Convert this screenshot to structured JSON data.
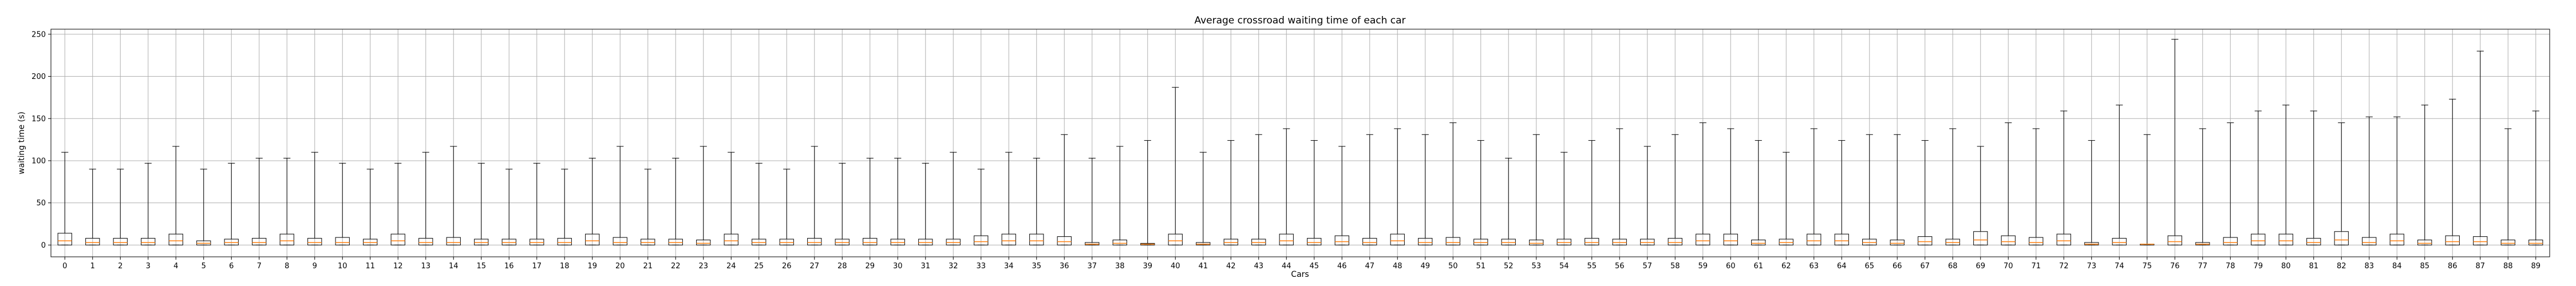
{
  "chart_data": {
    "type": "box",
    "title": "Average crossroad waiting time of each car",
    "xlabel": "Cars",
    "ylabel": "waiting time (s)",
    "ylim": [
      -14,
      256
    ],
    "yticks": [
      0,
      50,
      100,
      150,
      200,
      250
    ],
    "grid": true,
    "colors": {
      "box": "#000000",
      "median": "#ff7f0e",
      "grid": "#b0b0b0"
    },
    "categories": [
      "0",
      "1",
      "2",
      "3",
      "4",
      "5",
      "6",
      "7",
      "8",
      "9",
      "10",
      "11",
      "12",
      "13",
      "14",
      "15",
      "16",
      "17",
      "18",
      "19",
      "20",
      "21",
      "22",
      "23",
      "24",
      "25",
      "26",
      "27",
      "28",
      "29",
      "30",
      "31",
      "32",
      "33",
      "34",
      "35",
      "36",
      "37",
      "38",
      "39",
      "40",
      "41",
      "42",
      "43",
      "44",
      "45",
      "46",
      "47",
      "48",
      "49",
      "50",
      "51",
      "52",
      "53",
      "54",
      "55",
      "56",
      "57",
      "58",
      "59",
      "60",
      "61",
      "62",
      "63",
      "64",
      "65",
      "66",
      "67",
      "68",
      "69",
      "70",
      "71",
      "72",
      "73",
      "74",
      "75",
      "76",
      "77",
      "78",
      "79",
      "80",
      "81",
      "82",
      "83",
      "84",
      "85",
      "86",
      "87",
      "88",
      "89"
    ],
    "boxes": [
      {
        "min": 0,
        "q1": 0,
        "median": 5,
        "q3": 14,
        "max": 110
      },
      {
        "min": 0,
        "q1": 0,
        "median": 3,
        "q3": 8,
        "max": 90
      },
      {
        "min": 0,
        "q1": 0,
        "median": 3,
        "q3": 8,
        "max": 90
      },
      {
        "min": 0,
        "q1": 0,
        "median": 3,
        "q3": 8,
        "max": 97
      },
      {
        "min": 0,
        "q1": 0,
        "median": 5,
        "q3": 13,
        "max": 117
      },
      {
        "min": 0,
        "q1": 0,
        "median": 2,
        "q3": 5,
        "max": 90
      },
      {
        "min": 0,
        "q1": 0,
        "median": 3,
        "q3": 7,
        "max": 97
      },
      {
        "min": 0,
        "q1": 0,
        "median": 3,
        "q3": 8,
        "max": 103
      },
      {
        "min": 0,
        "q1": 0,
        "median": 5,
        "q3": 13,
        "max": 103
      },
      {
        "min": 0,
        "q1": 0,
        "median": 3,
        "q3": 8,
        "max": 110
      },
      {
        "min": 0,
        "q1": 0,
        "median": 3,
        "q3": 9,
        "max": 97
      },
      {
        "min": 0,
        "q1": 0,
        "median": 3,
        "q3": 7,
        "max": 90
      },
      {
        "min": 0,
        "q1": 0,
        "median": 5,
        "q3": 13,
        "max": 97
      },
      {
        "min": 0,
        "q1": 0,
        "median": 3,
        "q3": 8,
        "max": 110
      },
      {
        "min": 0,
        "q1": 0,
        "median": 3,
        "q3": 9,
        "max": 117
      },
      {
        "min": 0,
        "q1": 0,
        "median": 3,
        "q3": 7,
        "max": 97
      },
      {
        "min": 0,
        "q1": 0,
        "median": 3,
        "q3": 7,
        "max": 90
      },
      {
        "min": 0,
        "q1": 0,
        "median": 3,
        "q3": 7,
        "max": 97
      },
      {
        "min": 0,
        "q1": 0,
        "median": 3,
        "q3": 8,
        "max": 90
      },
      {
        "min": 0,
        "q1": 0,
        "median": 5,
        "q3": 13,
        "max": 103
      },
      {
        "min": 0,
        "q1": 0,
        "median": 3,
        "q3": 9,
        "max": 117
      },
      {
        "min": 0,
        "q1": 0,
        "median": 3,
        "q3": 7,
        "max": 90
      },
      {
        "min": 0,
        "q1": 0,
        "median": 3,
        "q3": 7,
        "max": 103
      },
      {
        "min": 0,
        "q1": 0,
        "median": 2,
        "q3": 6,
        "max": 117
      },
      {
        "min": 0,
        "q1": 0,
        "median": 5,
        "q3": 13,
        "max": 110
      },
      {
        "min": 0,
        "q1": 0,
        "median": 3,
        "q3": 7,
        "max": 97
      },
      {
        "min": 0,
        "q1": 0,
        "median": 3,
        "q3": 7,
        "max": 90
      },
      {
        "min": 0,
        "q1": 0,
        "median": 3,
        "q3": 8,
        "max": 117
      },
      {
        "min": 0,
        "q1": 0,
        "median": 3,
        "q3": 7,
        "max": 97
      },
      {
        "min": 0,
        "q1": 0,
        "median": 3,
        "q3": 8,
        "max": 103
      },
      {
        "min": 0,
        "q1": 0,
        "median": 3,
        "q3": 7,
        "max": 103
      },
      {
        "min": 0,
        "q1": 0,
        "median": 3,
        "q3": 7,
        "max": 97
      },
      {
        "min": 0,
        "q1": 0,
        "median": 3,
        "q3": 7,
        "max": 110
      },
      {
        "min": 0,
        "q1": 0,
        "median": 4,
        "q3": 11,
        "max": 90
      },
      {
        "min": 0,
        "q1": 0,
        "median": 5,
        "q3": 13,
        "max": 110
      },
      {
        "min": 0,
        "q1": 0,
        "median": 5,
        "q3": 13,
        "max": 103
      },
      {
        "min": 0,
        "q1": 0,
        "median": 4,
        "q3": 10,
        "max": 131
      },
      {
        "min": 0,
        "q1": 0,
        "median": 1,
        "q3": 3,
        "max": 103
      },
      {
        "min": 0,
        "q1": 0,
        "median": 2,
        "q3": 6,
        "max": 117
      },
      {
        "min": 0,
        "q1": 0,
        "median": 1,
        "q3": 2,
        "max": 124
      },
      {
        "min": 0,
        "q1": 0,
        "median": 5,
        "q3": 13,
        "max": 187
      },
      {
        "min": 0,
        "q1": 0,
        "median": 1,
        "q3": 3,
        "max": 110
      },
      {
        "min": 0,
        "q1": 0,
        "median": 3,
        "q3": 7,
        "max": 124
      },
      {
        "min": 0,
        "q1": 0,
        "median": 3,
        "q3": 7,
        "max": 131
      },
      {
        "min": 0,
        "q1": 0,
        "median": 5,
        "q3": 13,
        "max": 138
      },
      {
        "min": 0,
        "q1": 0,
        "median": 3,
        "q3": 8,
        "max": 124
      },
      {
        "min": 0,
        "q1": 0,
        "median": 4,
        "q3": 11,
        "max": 117
      },
      {
        "min": 0,
        "q1": 0,
        "median": 3,
        "q3": 8,
        "max": 131
      },
      {
        "min": 0,
        "q1": 0,
        "median": 5,
        "q3": 13,
        "max": 138
      },
      {
        "min": 0,
        "q1": 0,
        "median": 3,
        "q3": 8,
        "max": 131
      },
      {
        "min": 0,
        "q1": 0,
        "median": 3,
        "q3": 9,
        "max": 145
      },
      {
        "min": 0,
        "q1": 0,
        "median": 3,
        "q3": 7,
        "max": 124
      },
      {
        "min": 0,
        "q1": 0,
        "median": 3,
        "q3": 7,
        "max": 103
      },
      {
        "min": 0,
        "q1": 0,
        "median": 2,
        "q3": 6,
        "max": 131
      },
      {
        "min": 0,
        "q1": 0,
        "median": 3,
        "q3": 7,
        "max": 110
      },
      {
        "min": 0,
        "q1": 0,
        "median": 3,
        "q3": 8,
        "max": 124
      },
      {
        "min": 0,
        "q1": 0,
        "median": 3,
        "q3": 7,
        "max": 138
      },
      {
        "min": 0,
        "q1": 0,
        "median": 3,
        "q3": 7,
        "max": 117
      },
      {
        "min": 0,
        "q1": 0,
        "median": 3,
        "q3": 8,
        "max": 131
      },
      {
        "min": 0,
        "q1": 0,
        "median": 5,
        "q3": 13,
        "max": 145
      },
      {
        "min": 0,
        "q1": 0,
        "median": 5,
        "q3": 13,
        "max": 138
      },
      {
        "min": 0,
        "q1": 0,
        "median": 2,
        "q3": 6,
        "max": 124
      },
      {
        "min": 0,
        "q1": 0,
        "median": 3,
        "q3": 7,
        "max": 110
      },
      {
        "min": 0,
        "q1": 0,
        "median": 5,
        "q3": 13,
        "max": 138
      },
      {
        "min": 0,
        "q1": 0,
        "median": 5,
        "q3": 13,
        "max": 124
      },
      {
        "min": 0,
        "q1": 0,
        "median": 3,
        "q3": 7,
        "max": 131
      },
      {
        "min": 0,
        "q1": 0,
        "median": 2,
        "q3": 6,
        "max": 131
      },
      {
        "min": 0,
        "q1": 0,
        "median": 4,
        "q3": 10,
        "max": 124
      },
      {
        "min": 0,
        "q1": 0,
        "median": 3,
        "q3": 7,
        "max": 138
      },
      {
        "min": 0,
        "q1": 0,
        "median": 6,
        "q3": 16,
        "max": 117
      },
      {
        "min": 0,
        "q1": 0,
        "median": 4,
        "q3": 11,
        "max": 145
      },
      {
        "min": 0,
        "q1": 0,
        "median": 3,
        "q3": 9,
        "max": 138
      },
      {
        "min": 0,
        "q1": 0,
        "median": 5,
        "q3": 13,
        "max": 159
      },
      {
        "min": 0,
        "q1": 0,
        "median": 1,
        "q3": 3,
        "max": 124
      },
      {
        "min": 0,
        "q1": 0,
        "median": 3,
        "q3": 8,
        "max": 166
      },
      {
        "min": 0,
        "q1": 0,
        "median": 1,
        "q3": 1,
        "max": 131
      },
      {
        "min": 0,
        "q1": 0,
        "median": 4,
        "q3": 11,
        "max": 244
      },
      {
        "min": 0,
        "q1": 0,
        "median": 1,
        "q3": 3,
        "max": 138
      },
      {
        "min": 0,
        "q1": 0,
        "median": 3,
        "q3": 9,
        "max": 145
      },
      {
        "min": 0,
        "q1": 0,
        "median": 5,
        "q3": 13,
        "max": 159
      },
      {
        "min": 0,
        "q1": 0,
        "median": 5,
        "q3": 13,
        "max": 166
      },
      {
        "min": 0,
        "q1": 0,
        "median": 3,
        "q3": 8,
        "max": 159
      },
      {
        "min": 0,
        "q1": 0,
        "median": 6,
        "q3": 16,
        "max": 145
      },
      {
        "min": 0,
        "q1": 0,
        "median": 3,
        "q3": 9,
        "max": 152
      },
      {
        "min": 0,
        "q1": 0,
        "median": 5,
        "q3": 13,
        "max": 152
      },
      {
        "min": 0,
        "q1": 0,
        "median": 2,
        "q3": 6,
        "max": 166
      },
      {
        "min": 0,
        "q1": 0,
        "median": 4,
        "q3": 11,
        "max": 173
      },
      {
        "min": 0,
        "q1": 0,
        "median": 4,
        "q3": 10,
        "max": 230
      },
      {
        "min": 0,
        "q1": 0,
        "median": 2,
        "q3": 6,
        "max": 138
      },
      {
        "min": 0,
        "q1": 0,
        "median": 2,
        "q3": 6,
        "max": 159
      }
    ]
  }
}
